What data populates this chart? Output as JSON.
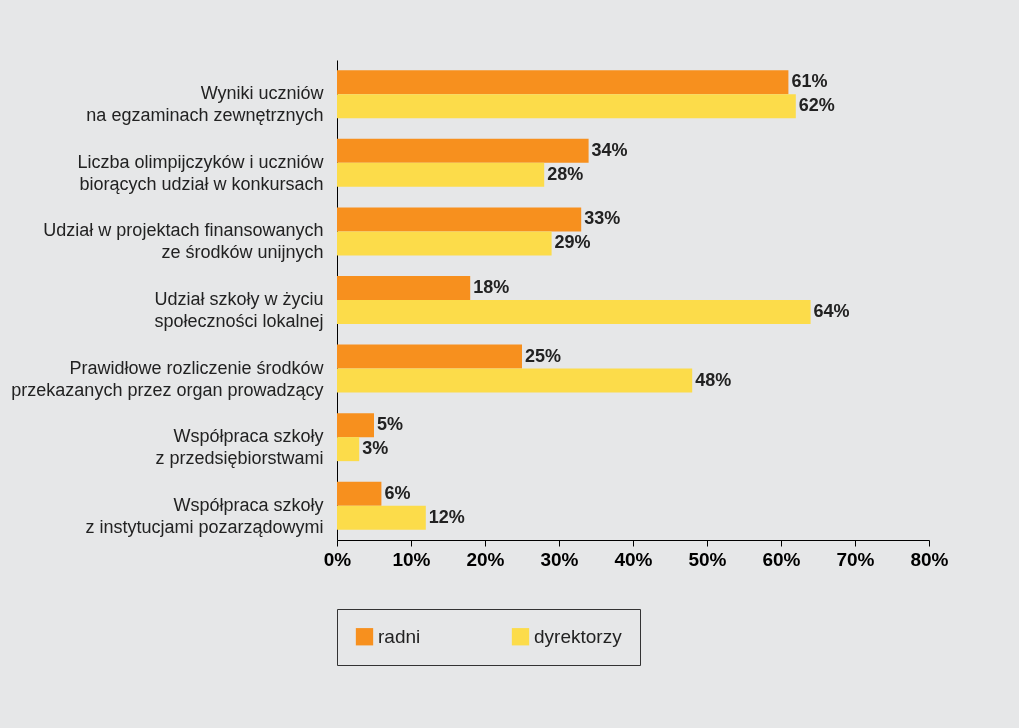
{
  "chart_data": {
    "type": "bar",
    "orientation": "horizontal",
    "categories": [
      "Wyniki uczniów\nna egzaminach zewnętrznych",
      "Liczba olimpijczyków i uczniów\nbiorących udział w konkursach",
      "Udział w projektach finansowanych\nze środków unijnych",
      "Udział szkoły w życiu\nspołeczności lokalnej",
      "Prawidłowe rozliczenie środków\nprzekazanych przez organ prowadzący",
      "Współpraca szkoły\nz przedsiębiorstwami",
      "Współpraca szkoły\nz instytucjami pozarządowymi"
    ],
    "series": [
      {
        "name": "radni",
        "color": "#f7901e",
        "values": [
          61,
          34,
          33,
          18,
          25,
          5,
          6
        ],
        "value_labels": [
          "61%",
          "34%",
          "33%",
          "18%",
          "25%",
          "5%",
          "6%"
        ]
      },
      {
        "name": "dyrektorzy",
        "color": "#fcdc4a",
        "values": [
          62,
          28,
          29,
          64,
          48,
          3,
          12
        ],
        "value_labels": [
          "62%",
          "28%",
          "29%",
          "64%",
          "48%",
          "3%",
          "12%"
        ]
      }
    ],
    "xlim": [
      0,
      80
    ],
    "xticks": [
      {
        "value": 0,
        "label": "0%"
      },
      {
        "value": 10,
        "label": "10%"
      },
      {
        "value": 20,
        "label": "20%"
      },
      {
        "value": 30,
        "label": "30%"
      },
      {
        "value": 40,
        "label": "40%"
      },
      {
        "value": 50,
        "label": "50%"
      },
      {
        "value": 60,
        "label": "60%"
      },
      {
        "value": 70,
        "label": "70%"
      },
      {
        "value": 80,
        "label": "80%"
      }
    ],
    "grid": false,
    "legend": "bottom"
  }
}
